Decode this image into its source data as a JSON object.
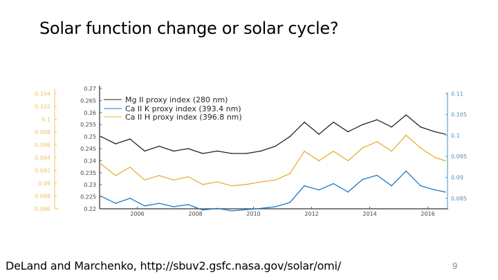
{
  "slide": {
    "title": "Solar function change or solar cycle?",
    "footer": "DeLand and Marchenko, http://sbuv2.gsfc.nasa.gov/solar/omi/",
    "page_number": "9"
  },
  "chart_data": {
    "type": "line",
    "title": "",
    "xlabel": "",
    "xlim": [
      2004.7,
      2016.7
    ],
    "xticks": [
      "2006",
      "2008",
      "2010",
      "2012",
      "2014",
      "2016"
    ],
    "axes": {
      "left": {
        "ylim": [
          0.22,
          0.27
        ],
        "ticks": [
          "0.22",
          "0.225",
          "0.23",
          "0.235",
          "0.24",
          "0.245",
          "0.25",
          "0.255",
          "0.26",
          "0.265",
          "0.27"
        ],
        "color": "#333333"
      },
      "right": {
        "ylim": [
          0.0825,
          0.1112
        ],
        "ticks": [
          "0.085",
          "0.09",
          "0.095",
          "0.1",
          "0.105",
          "0.11"
        ],
        "color": "#4a90c0"
      },
      "far_left": {
        "ylim": [
          0.086,
          0.1048
        ],
        "ticks": [
          "0.086",
          "0.088",
          "0.09",
          "0.092",
          "0.094",
          "0.096",
          "0.098",
          "0.1",
          "0.102",
          "0.104"
        ],
        "color": "#f0c060"
      }
    },
    "grid": false,
    "legend_position": "top-left",
    "x": [
      2004.75,
      2005.25,
      2005.75,
      2006.25,
      2006.75,
      2007.25,
      2007.75,
      2008.25,
      2008.75,
      2009.25,
      2009.75,
      2010.25,
      2010.75,
      2011.25,
      2011.75,
      2012.25,
      2012.75,
      2013.25,
      2013.75,
      2014.25,
      2014.75,
      2015.25,
      2015.75,
      2016.25,
      2016.6
    ],
    "series": [
      {
        "name": "Mg II proxy index (280 nm)",
        "axis": "left",
        "color": "#222222",
        "values": [
          0.25,
          0.247,
          0.249,
          0.244,
          0.246,
          0.244,
          0.245,
          0.243,
          0.244,
          0.243,
          0.243,
          0.244,
          0.246,
          0.25,
          0.256,
          0.251,
          0.256,
          0.252,
          0.255,
          0.257,
          0.254,
          0.259,
          0.254,
          0.252,
          0.251
        ]
      },
      {
        "name": "Ca II K proxy index (393.4 nm)",
        "axis": "right",
        "color": "#1f78c1",
        "values": [
          0.0855,
          0.0838,
          0.085,
          0.0832,
          0.0838,
          0.083,
          0.0835,
          0.0822,
          0.0826,
          0.082,
          0.0823,
          0.0826,
          0.083,
          0.084,
          0.088,
          0.087,
          0.0885,
          0.0865,
          0.0895,
          0.0905,
          0.088,
          0.0915,
          0.088,
          0.087,
          0.0865
        ]
      },
      {
        "name": "Ca II H proxy index (396.8 nm)",
        "axis": "far_left",
        "color": "#e8b030",
        "values": [
          0.093,
          0.0912,
          0.0925,
          0.0905,
          0.0912,
          0.0905,
          0.091,
          0.0898,
          0.0902,
          0.0896,
          0.0898,
          0.0902,
          0.0905,
          0.0915,
          0.095,
          0.0935,
          0.095,
          0.0935,
          0.0955,
          0.0965,
          0.095,
          0.0975,
          0.0955,
          0.094,
          0.0935
        ]
      }
    ]
  }
}
